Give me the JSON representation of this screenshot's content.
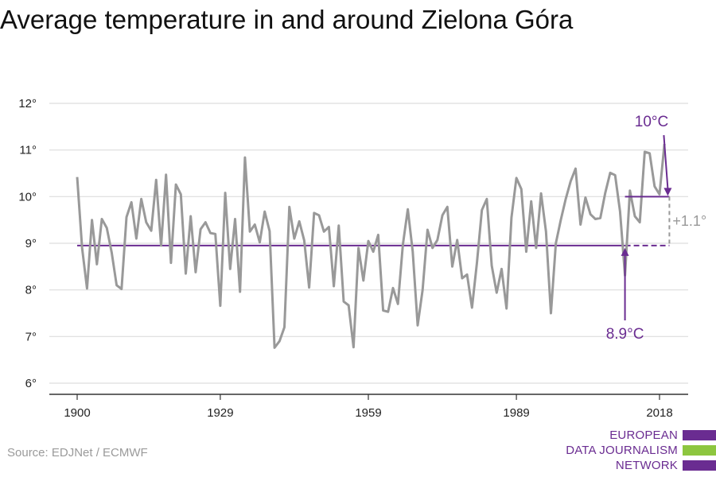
{
  "title": "Average temperature in and around Zielona Góra",
  "source": "Source: EDJNet / ECMWF",
  "logo": {
    "lines": [
      "EUROPEAN",
      "DATA JOURNALISM",
      "NETWORK"
    ],
    "colors": [
      "#6a2c91",
      "#8dc63f",
      "#6a2c91"
    ]
  },
  "colors": {
    "series": "#999999",
    "accent": "#6a2c91",
    "grid": "#dddddd",
    "axis": "#333333",
    "delta": "#999999"
  },
  "chart_data": {
    "type": "line",
    "title": "Average temperature in and around Zielona Góra",
    "xlabel": "",
    "ylabel": "",
    "xlim": [
      1900,
      2018
    ],
    "ylim": [
      6,
      12
    ],
    "x_ticks": [
      1900,
      1929,
      1959,
      1989,
      2018
    ],
    "y_ticks": [
      6,
      7,
      8,
      9,
      10,
      11,
      12
    ],
    "y_tick_labels": [
      "6°",
      "7°",
      "8°",
      "9°",
      "10°",
      "11°",
      "12°"
    ],
    "grid": true,
    "series": [
      {
        "x_start": 1900,
        "x_step": 1,
        "values": [
          10.42,
          8.9,
          8.03,
          9.5,
          8.55,
          9.52,
          9.33,
          8.8,
          8.1,
          8.02,
          9.56,
          9.88,
          9.1,
          9.95,
          9.45,
          9.27,
          10.36,
          8.95,
          10.47,
          8.58,
          10.26,
          10.05,
          8.35,
          9.58,
          8.38,
          9.3,
          9.45,
          9.22,
          9.2,
          7.66,
          10.08,
          8.45,
          9.52,
          7.96,
          10.84,
          9.25,
          9.4,
          9.02,
          9.68,
          9.26,
          6.76,
          6.9,
          7.2,
          9.78,
          9.1,
          9.47,
          9.06,
          8.05,
          9.65,
          9.6,
          9.25,
          9.35,
          8.08,
          9.38,
          7.75,
          7.67,
          6.77,
          8.9,
          8.2,
          9.05,
          8.82,
          9.18,
          7.56,
          7.53,
          8.04,
          7.7,
          8.97,
          9.73,
          8.82,
          7.24,
          8.0,
          9.29,
          8.9,
          9.07,
          9.6,
          9.78,
          8.5,
          9.07,
          8.25,
          8.33,
          7.62,
          8.58,
          9.71,
          9.95,
          8.52,
          7.94,
          8.45,
          7.6,
          9.55,
          10.4,
          10.16,
          8.82,
          9.9,
          8.9,
          10.07,
          9.25,
          7.5,
          9.0,
          9.5,
          9.95,
          10.33,
          10.6,
          9.4,
          9.98,
          9.62,
          9.52,
          9.54,
          10.08,
          10.51,
          10.46,
          9.68,
          8.31,
          10.13,
          9.58,
          9.45,
          10.96,
          10.93,
          10.22,
          10.05,
          11.13
        ]
      }
    ],
    "annotations": {
      "baseline": {
        "label": "8.9°C",
        "value": 8.95,
        "solid_x": [
          1900,
          2011
        ],
        "dashed_x": [
          2011,
          2020
        ]
      },
      "recent": {
        "label": "10°C",
        "value": 10.0,
        "x": [
          2011,
          2020
        ]
      },
      "delta": {
        "label": "+1.1°"
      }
    }
  }
}
